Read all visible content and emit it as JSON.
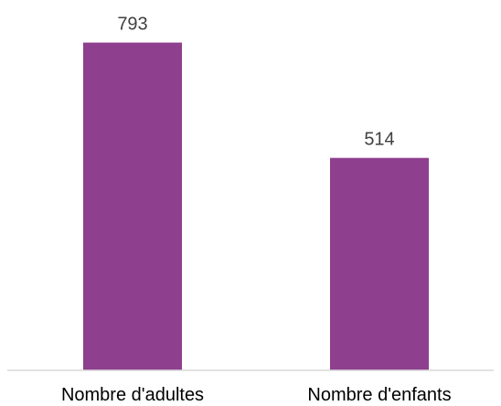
{
  "chart_data": {
    "type": "bar",
    "categories": [
      "Nombre d'adultes",
      "Nombre d'enfants"
    ],
    "values": [
      793,
      514
    ],
    "data_labels": [
      "793",
      "514"
    ],
    "ylim": [
      0,
      900
    ],
    "grid": false,
    "legend": "none",
    "bar_color": "#8e3f8e",
    "axis_color": "#d9d9d9"
  }
}
